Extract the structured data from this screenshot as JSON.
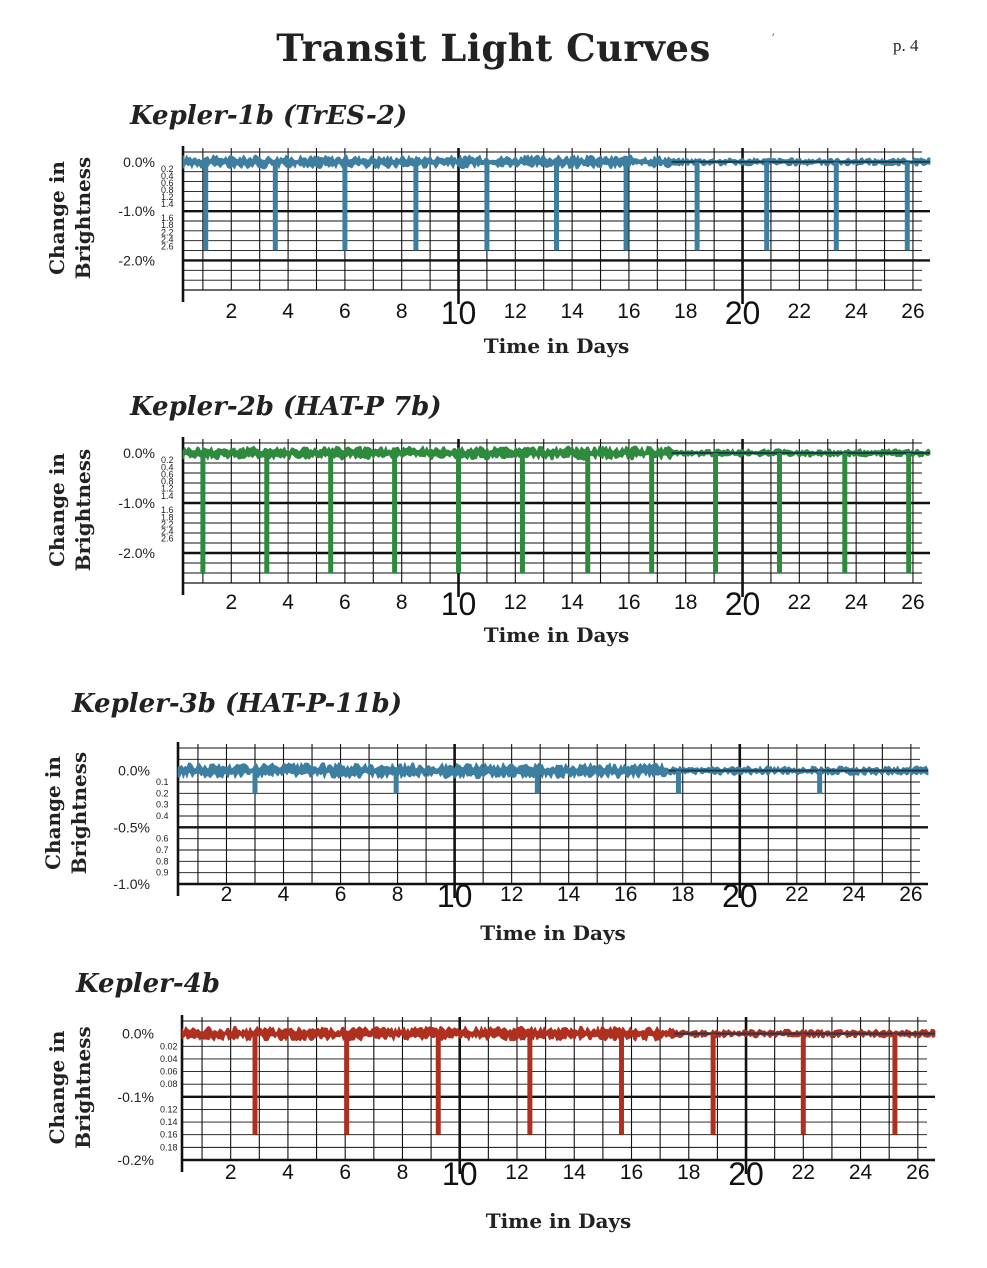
{
  "page": {
    "title": "Transit Light Curves",
    "page_number": "p. 4",
    "mark": "′"
  },
  "chart_data": [
    {
      "type": "line",
      "title": "Kepler-1b (TrES-2)",
      "xlabel": "Time in Days",
      "ylabel": "Change in Brightness",
      "color": "#3d7fa0",
      "xlim": [
        0.3,
        26.6
      ],
      "ylim": [
        -2.6,
        0.2
      ],
      "x_ticks": [
        "2",
        "4",
        "6",
        "8",
        "10",
        "12",
        "14",
        "16",
        "18",
        "20",
        "22",
        "24",
        "26"
      ],
      "y_major_labels": [
        "0.0%",
        "-1.0%",
        "-2.0%"
      ],
      "y_major_values": [
        0,
        -1,
        -2
      ],
      "y_minor_labels": [
        "0.2",
        "0.4",
        "0.6",
        "0.8",
        "1.2",
        "1.4",
        "1.6",
        "1.8",
        "2.2",
        "2.4",
        "2.6"
      ],
      "noise_amplitude": 0.12,
      "transit_depth": -1.8,
      "transit_times": [
        1.1,
        3.55,
        6.0,
        8.5,
        11.0,
        13.45,
        15.9,
        18.4,
        20.85,
        23.3,
        25.8
      ]
    },
    {
      "type": "line",
      "title": "Kepler-2b (HAT-P 7b)",
      "xlabel": "Time in Days",
      "ylabel": "Change in Brightness",
      "color": "#2e8b3e",
      "xlim": [
        0.3,
        26.6
      ],
      "ylim": [
        -2.6,
        0.2
      ],
      "x_ticks": [
        "2",
        "4",
        "6",
        "8",
        "10",
        "12",
        "14",
        "16",
        "18",
        "20",
        "22",
        "24",
        "26"
      ],
      "y_major_labels": [
        "0.0%",
        "-1.0%",
        "-2.0%"
      ],
      "y_major_values": [
        0,
        -1,
        -2
      ],
      "y_minor_labels": [
        "0.2",
        "0.4",
        "0.6",
        "0.8",
        "1.2",
        "1.4",
        "1.6",
        "1.8",
        "2.2",
        "2.4",
        "2.6"
      ],
      "noise_amplitude": 0.12,
      "transit_depth": -2.4,
      "transit_times": [
        1.0,
        3.25,
        5.5,
        7.75,
        10.0,
        12.25,
        14.55,
        16.8,
        19.05,
        21.3,
        23.6,
        25.85
      ]
    },
    {
      "type": "line",
      "title": "Kepler-3b (HAT-P-11b)",
      "xlabel": "Time in Days",
      "ylabel": "Change in Brightness",
      "color": "#3d7fa0",
      "xlim": [
        0.3,
        26.6
      ],
      "ylim": [
        -1.0,
        0.2
      ],
      "x_ticks": [
        "2",
        "4",
        "6",
        "8",
        "10",
        "12",
        "14",
        "16",
        "18",
        "20",
        "22",
        "24",
        "26"
      ],
      "y_major_labels": [
        "0.0%",
        "-0.5%",
        "-1.0%"
      ],
      "y_major_values": [
        0,
        -0.5,
        -1.0
      ],
      "y_minor_labels": [
        "0.1",
        "0.2",
        "0.3",
        "0.4",
        "0.6",
        "0.7",
        "0.8",
        "0.9"
      ],
      "noise_amplitude": 0.06,
      "transit_depth": -0.2,
      "transit_times": [
        3.0,
        7.95,
        12.9,
        17.85,
        22.8
      ]
    },
    {
      "type": "line",
      "title": "Kepler-4b",
      "xlabel": "Time in Days",
      "ylabel": "Change in Brightness",
      "color": "#b03020",
      "xlim": [
        0.3,
        26.6
      ],
      "ylim": [
        -0.2,
        0.02
      ],
      "x_ticks": [
        "2",
        "4",
        "6",
        "8",
        "10",
        "12",
        "14",
        "16",
        "18",
        "20",
        "22",
        "24",
        "26"
      ],
      "y_major_labels": [
        "0.0%",
        "-0.1%",
        "-0.2%"
      ],
      "y_major_values": [
        0,
        -0.1,
        -0.2
      ],
      "y_minor_labels": [
        "0.02",
        "0.04",
        "0.06",
        "0.08",
        "0.12",
        "0.14",
        "0.16",
        "0.18"
      ],
      "noise_amplitude": 0.01,
      "transit_depth": -0.16,
      "transit_times": [
        2.85,
        6.05,
        9.25,
        12.45,
        15.65,
        18.85,
        22.0,
        25.2
      ]
    }
  ]
}
